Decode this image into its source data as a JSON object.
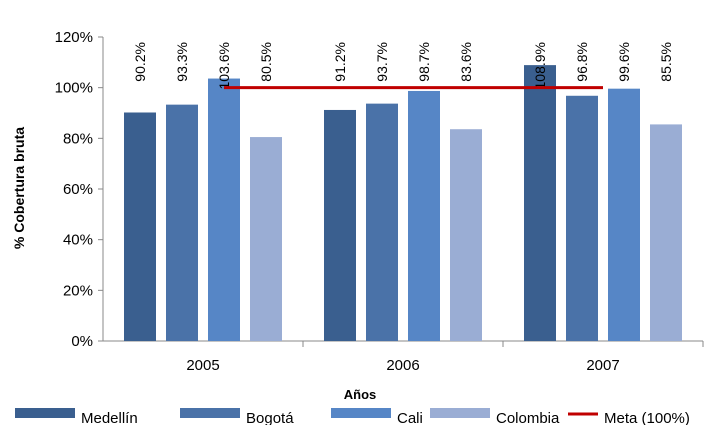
{
  "chart_data": {
    "type": "bar",
    "categories": [
      "2005",
      "2006",
      "2007"
    ],
    "series": [
      {
        "name": "Medellín",
        "color": "#3A5F8F",
        "values": [
          90.2,
          91.2,
          108.9
        ],
        "labels": [
          "90.2%",
          "91.2%",
          "108.9%"
        ]
      },
      {
        "name": "Bogotá",
        "color": "#4A72A8",
        "values": [
          93.3,
          93.7,
          96.8
        ],
        "labels": [
          "93.3%",
          "93.7%",
          "96.8%"
        ]
      },
      {
        "name": "Cali",
        "color": "#5686C6",
        "values": [
          103.6,
          98.7,
          99.6
        ],
        "labels": [
          "103.6%",
          "98.7%",
          "99.6%"
        ]
      },
      {
        "name": "Colombia",
        "color": "#9AADD4",
        "values": [
          80.5,
          83.6,
          85.5
        ],
        "labels": [
          "80.5%",
          "83.6%",
          "85.5%"
        ]
      }
    ],
    "target_line": {
      "name": "Meta (100%)",
      "value": 100,
      "color": "#C00000"
    },
    "xlabel": "Años",
    "ylabel": "% Cobertura bruta",
    "ylim": [
      0,
      120
    ],
    "yticks": [
      "0%",
      "20%",
      "40%",
      "60%",
      "80%",
      "100%",
      "120%"
    ],
    "grid": false,
    "legend": "bottom"
  }
}
